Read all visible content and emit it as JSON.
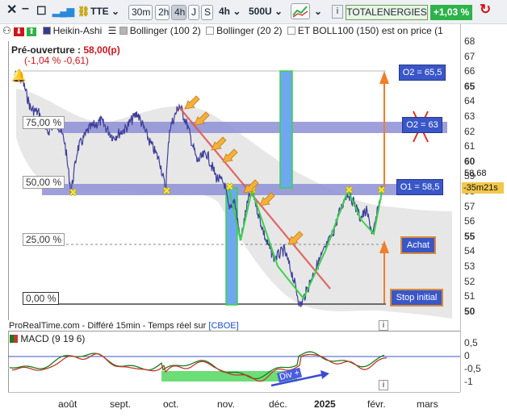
{
  "toolbar": {
    "symbol": "TTE",
    "timeframes": [
      "30m",
      "2h",
      "4h",
      "J",
      "S"
    ],
    "active_timeframe": "4h",
    "interval_select": "4h",
    "units_select": "500U",
    "instrument": "TOTALENERGIES",
    "change": "+1,03 %"
  },
  "indicators": {
    "chart_type": "Heikin-Ashi",
    "bb1": "Bollinger (100 2)",
    "bb2": "Bollinger (20 2)",
    "bb3": "ET BOLL100 (150)",
    "extra": "est on price (1"
  },
  "preopen": {
    "label": "Pré-ouverture :",
    "price": "58,00(p)",
    "change": "(-1,04 % -0,61)"
  },
  "fib_levels": [
    "75,00 %",
    "50,00 %",
    "25,00 %",
    "0,00 %"
  ],
  "annotations": {
    "o2_top": "O2 = 65,5",
    "o2_mid": "O2 = 63",
    "o1": "O1 = 58,5",
    "achat": "Achat",
    "stop": "Stop initial",
    "div": "Div +"
  },
  "price_axis": {
    "ticks": [
      "68",
      "67",
      "66",
      "65",
      "64",
      "63",
      "62",
      "61",
      "60",
      "59",
      "58",
      "57",
      "56",
      "55",
      "54",
      "53",
      "52",
      "51",
      "50"
    ],
    "bold_ticks": [
      "65",
      "60",
      "55",
      "50"
    ],
    "last_price": "58,68",
    "timer": "35m21s"
  },
  "macd_axis": {
    "ticks": [
      "0,5",
      "0",
      "-0,5",
      "-1"
    ]
  },
  "source": {
    "text": "ProRealTime.com - Différé 15min - Temps réel sur",
    "link": "[CBOE]"
  },
  "macd": {
    "title": "MACD (9 19 6)"
  },
  "time_axis": {
    "labels": [
      "août",
      "sept.",
      "oct.",
      "nov.",
      "déc.",
      "2025",
      "févr.",
      "mars"
    ]
  },
  "colors": {
    "price_line": "#3f3f9a",
    "trendline": "#e05050",
    "target_arrow": "#f07e2a",
    "fib_band": "#8d8fd6",
    "green": "#3bd24a",
    "macd_fast": "#1a7a1a",
    "macd_slow": "#c0392b",
    "accent": "#3a57c8"
  }
}
